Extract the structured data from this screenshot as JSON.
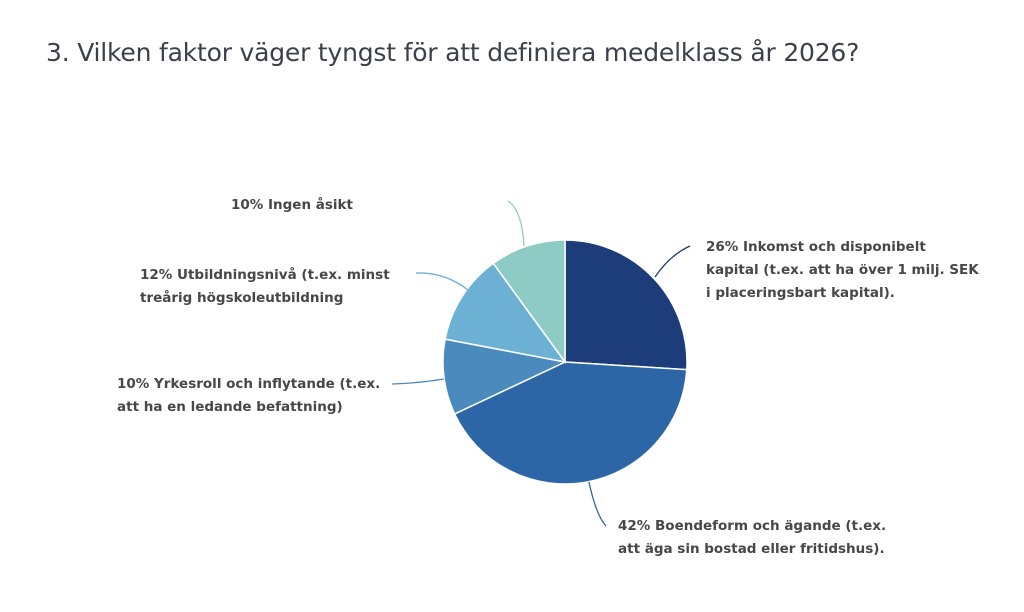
{
  "title": "3. Vilken faktor väger tyngst för att definiera medelklass år 2026?",
  "chart_data": {
    "type": "pie",
    "title": "3. Vilken faktor väger tyngst för att definiera medelklass år 2026?",
    "start_angle": "top, clockwise",
    "slices": [
      {
        "value": 26,
        "color": "#1c3d7a",
        "label_lines": [
          "26% Inkomst och disponibelt",
          "kapital (t.ex. att ha över 1 milj. SEK",
          "i placeringsbart kapital)."
        ]
      },
      {
        "value": 42,
        "color": "#2c66a6",
        "label_lines": [
          "42% Boendeform och ägande (t.ex.",
          "att äga sin bostad eller fritidshus)."
        ]
      },
      {
        "value": 10,
        "color": "#4a8abd",
        "label_lines": [
          "10% Yrkesroll och inflytande (t.ex.",
          "att ha en ledande befattning)"
        ]
      },
      {
        "value": 12,
        "color": "#6cb1d3",
        "label_lines": [
          "12% Utbildningsnivå (t.ex. minst",
          "treårig högskoleutbildning"
        ]
      },
      {
        "value": 10,
        "color": "#8ecbc5",
        "label_lines": [
          "10% Ingen åsikt"
        ]
      }
    ]
  }
}
